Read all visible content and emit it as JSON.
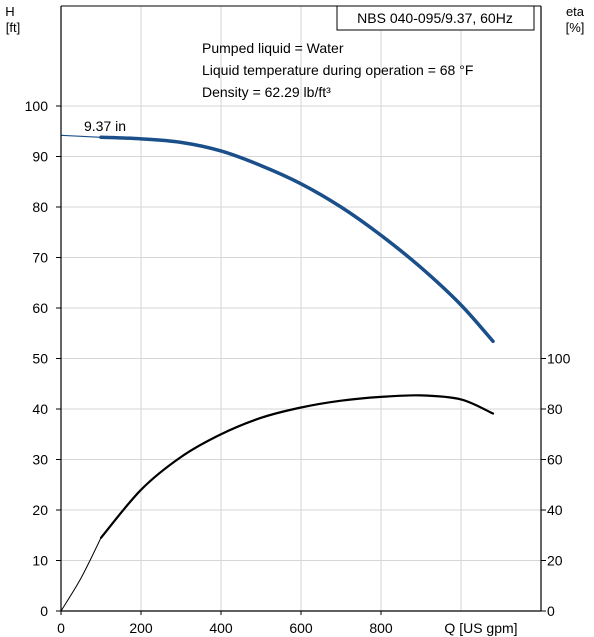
{
  "chart_data": {
    "type": "line",
    "title": "NBS 040-095/9.37, 60Hz",
    "notes": [
      "Pumped liquid = Water",
      "Liquid temperature during operation = 68 °F",
      "Density = 62.29 lb/ft³"
    ],
    "xlabel": "Q [US gpm]",
    "ylabel_left": {
      "line1": "H",
      "line2": "[ft]"
    },
    "ylabel_right": {
      "line1": "eta",
      "line2": "[%]"
    },
    "xlim": [
      0,
      1200
    ],
    "ylim_left": [
      0,
      105
    ],
    "xticks": [
      0,
      200,
      400,
      600,
      800
    ],
    "yticks_left": [
      0,
      10,
      20,
      30,
      40,
      50,
      60,
      70,
      80,
      90,
      100
    ],
    "yticks_right": [
      0,
      20,
      40,
      60,
      80,
      100
    ],
    "right_axis_scale": "eta 0–100 % spans H 0–50 ft",
    "grid": true,
    "series": [
      {
        "name": "9.37 in",
        "axis": "left",
        "color": "#1a4f8a",
        "x": [
          0,
          100,
          200,
          300,
          400,
          500,
          600,
          700,
          800,
          900,
          1000,
          1080
        ],
        "y": [
          94.2,
          93.8,
          93.5,
          92.8,
          91.1,
          88.2,
          84.6,
          80.0,
          74.4,
          68.0,
          60.6,
          53.4
        ]
      },
      {
        "axis": "right",
        "color": "#000000",
        "x": [
          0,
          50,
          100,
          200,
          300,
          400,
          500,
          600,
          700,
          800,
          900,
          1000,
          1080
        ],
        "y": [
          0,
          13,
          29,
          48,
          61,
          70,
          76.5,
          80.6,
          83.3,
          84.8,
          85.4,
          83.8,
          78.2
        ]
      }
    ]
  }
}
